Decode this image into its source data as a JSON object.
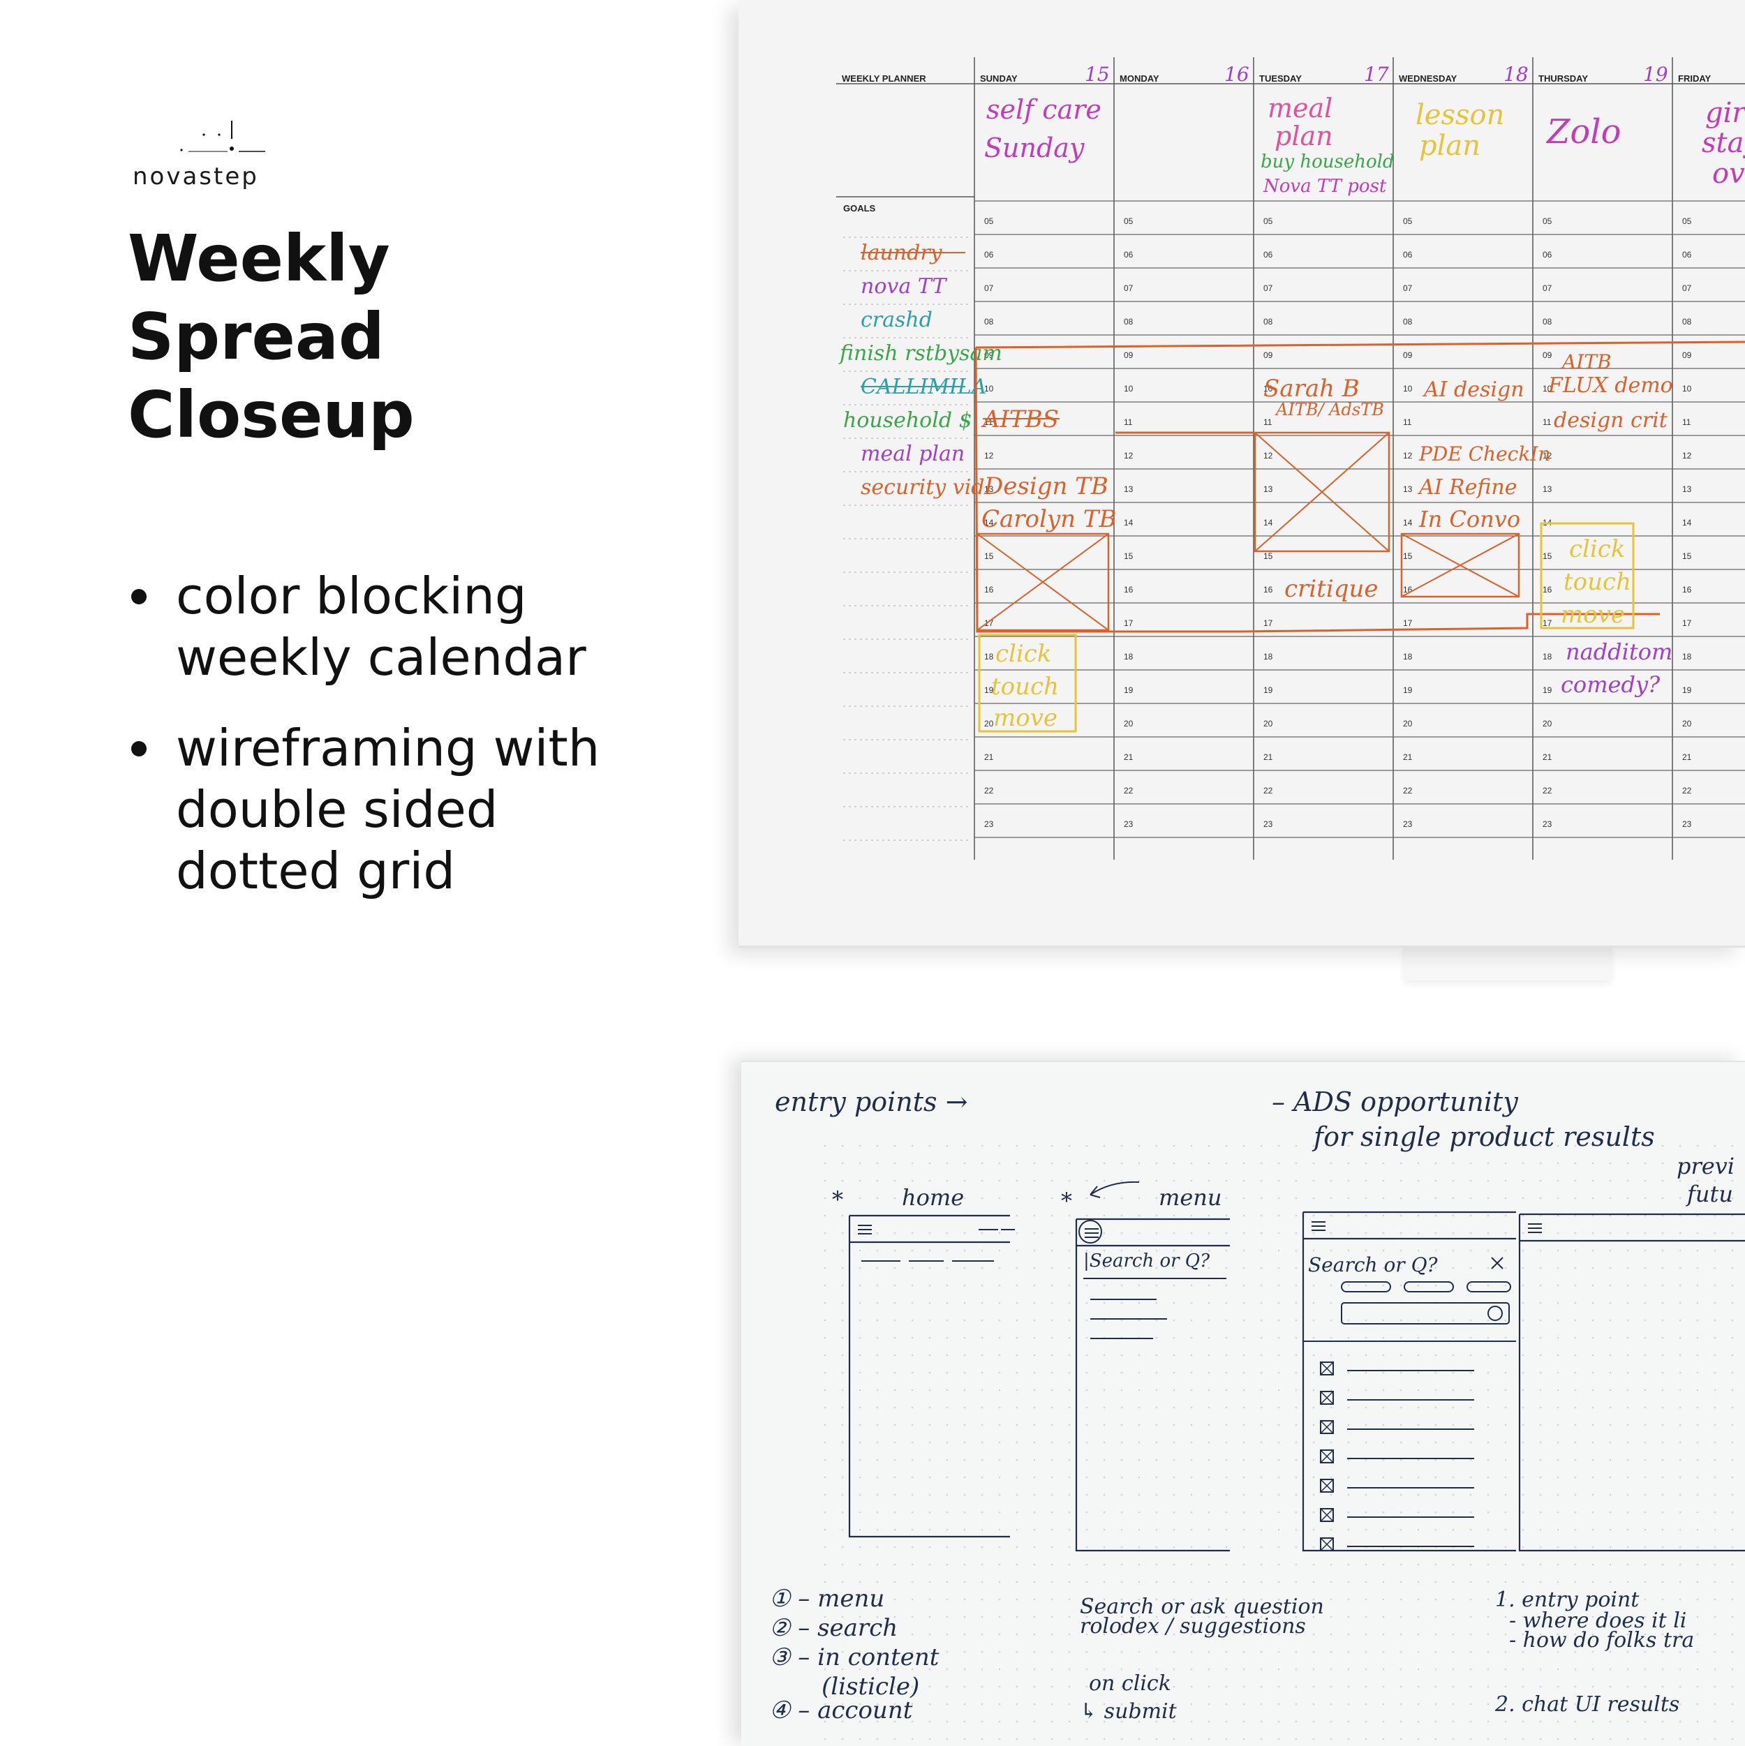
{
  "brand": "novastep",
  "title_lines": [
    "Weekly",
    "Spread",
    "Closeup"
  ],
  "bullets": [
    {
      "lines": [
        "color blocking",
        "weekly calendar"
      ]
    },
    {
      "lines": [
        "wireframing with",
        "double sided",
        "dotted grid"
      ]
    }
  ],
  "planner": {
    "header_label": "WEEKLY PLANNER",
    "goals_label": "GOALS",
    "days": [
      {
        "name": "SUNDAY",
        "date": "15"
      },
      {
        "name": "MONDAY",
        "date": "16"
      },
      {
        "name": "TUESDAY",
        "date": "17"
      },
      {
        "name": "WEDNESDAY",
        "date": "18"
      },
      {
        "name": "THURSDAY",
        "date": "19"
      },
      {
        "name": "FRIDAY",
        "date": ""
      }
    ],
    "hours": [
      "05",
      "06",
      "07",
      "08",
      "09",
      "10",
      "11",
      "12",
      "13",
      "14",
      "15",
      "16",
      "17",
      "18",
      "19",
      "20",
      "21",
      "22",
      "23"
    ],
    "top_notes": {
      "sunday": [
        "self care",
        "Sunday"
      ],
      "tuesday": [
        "meal",
        "plan",
        "buy household",
        "Nova TT post"
      ],
      "wednesday": [
        "lesson",
        "plan"
      ],
      "thursday": [
        "Zolo"
      ],
      "friday": [
        "gir",
        "stay",
        "ov"
      ]
    },
    "goals": [
      "laundry",
      "nova TT",
      "crashd",
      "finish rstbysam",
      "CALLIMILA",
      "household $",
      "meal plan",
      "security vid"
    ],
    "events": {
      "monday": [
        "AITBS",
        "Design TB",
        "Carolyn TB",
        "click",
        "touch",
        "move"
      ],
      "tuesday": [
        "Sarah B",
        "AITB/ AdsTB",
        "critique"
      ],
      "wednesday": [
        "AI design",
        "PDE CheckIn",
        "AI Refine",
        "In Convo"
      ],
      "thursday": [
        "AITB",
        "FLUX demo",
        "design crit",
        "click",
        "touch",
        "move",
        "nadditom",
        "comedy?"
      ]
    },
    "colors": {
      "orange": "#d9622b",
      "yellow": "#e6c43a",
      "purple": "#a040c8",
      "magenta": "#c23bb8",
      "teal": "#2aa0a8",
      "green": "#3aa64a",
      "pink": "#e0529a"
    }
  },
  "wireframe": {
    "top_left": "entry points →",
    "top_right_1": "– ADS opportunity",
    "top_right_2": "for single product results",
    "top_right_3": "previ",
    "top_right_4": "futu",
    "screen1_label": "home",
    "screen2_label": "menu",
    "search1": "|Search or Q?",
    "search2": "Search or Q?",
    "legend": [
      "① – menu",
      "② – search",
      "③ – in content",
      "(listicle)",
      "④ – account"
    ],
    "middle_notes": [
      "Search or ask question",
      "rolodex / suggestions",
      "on click",
      "↳ submit"
    ],
    "right_notes": [
      "1. entry point",
      "- where does it li",
      "- how do folks tra",
      "2. chat UI results"
    ],
    "ink": "#1f2d4a"
  }
}
